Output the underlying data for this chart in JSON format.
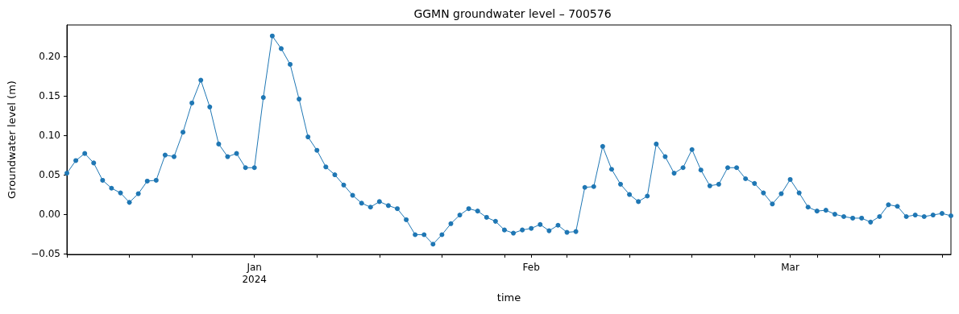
{
  "chart_data": {
    "type": "line",
    "title": "GGMN groundwater level – 700576",
    "xlabel": "time",
    "ylabel": "Groundwater level (m)",
    "x": [
      "2023-12-11",
      "2023-12-12",
      "2023-12-13",
      "2023-12-14",
      "2023-12-15",
      "2023-12-16",
      "2023-12-17",
      "2023-12-18",
      "2023-12-19",
      "2023-12-20",
      "2023-12-21",
      "2023-12-22",
      "2023-12-23",
      "2023-12-24",
      "2023-12-25",
      "2023-12-26",
      "2023-12-27",
      "2023-12-28",
      "2023-12-29",
      "2023-12-30",
      "2023-12-31",
      "2024-01-01",
      "2024-01-02",
      "2024-01-03",
      "2024-01-04",
      "2024-01-05",
      "2024-01-06",
      "2024-01-07",
      "2024-01-08",
      "2024-01-09",
      "2024-01-10",
      "2024-01-11",
      "2024-01-12",
      "2024-01-13",
      "2024-01-14",
      "2024-01-15",
      "2024-01-16",
      "2024-01-17",
      "2024-01-18",
      "2024-01-19",
      "2024-01-20",
      "2024-01-21",
      "2024-01-22",
      "2024-01-23",
      "2024-01-24",
      "2024-01-25",
      "2024-01-26",
      "2024-01-27",
      "2024-01-28",
      "2024-01-29",
      "2024-01-30",
      "2024-01-31",
      "2024-02-01",
      "2024-02-02",
      "2024-02-03",
      "2024-02-04",
      "2024-02-05",
      "2024-02-06",
      "2024-02-07",
      "2024-02-08",
      "2024-02-09",
      "2024-02-10",
      "2024-02-11",
      "2024-02-12",
      "2024-02-13",
      "2024-02-14",
      "2024-02-15",
      "2024-02-16",
      "2024-02-17",
      "2024-02-18",
      "2024-02-19",
      "2024-02-20",
      "2024-02-21",
      "2024-02-22",
      "2024-02-23",
      "2024-02-24",
      "2024-02-25",
      "2024-02-26",
      "2024-02-27",
      "2024-02-28",
      "2024-02-29",
      "2024-03-01",
      "2024-03-02",
      "2024-03-03",
      "2024-03-04",
      "2024-03-05",
      "2024-03-06",
      "2024-03-07",
      "2024-03-08",
      "2024-03-09",
      "2024-03-10",
      "2024-03-11",
      "2024-03-12",
      "2024-03-13",
      "2024-03-14",
      "2024-03-15",
      "2024-03-16",
      "2024-03-17",
      "2024-03-18",
      "2024-03-19"
    ],
    "series": [
      {
        "color": "#1f77b4",
        "values": [
          0.052,
          0.068,
          0.077,
          0.065,
          0.043,
          0.033,
          0.027,
          0.015,
          0.026,
          0.042,
          0.043,
          0.075,
          0.073,
          0.104,
          0.141,
          0.17,
          0.136,
          0.089,
          0.073,
          0.077,
          0.059,
          0.059,
          0.148,
          0.226,
          0.21,
          0.19,
          0.146,
          0.098,
          0.081,
          0.06,
          0.05,
          0.037,
          0.024,
          0.014,
          0.009,
          0.016,
          0.011,
          0.007,
          -0.007,
          -0.026,
          -0.026,
          -0.038,
          -0.026,
          -0.012,
          -0.001,
          0.007,
          0.004,
          -0.004,
          -0.009,
          -0.02,
          -0.024,
          -0.02,
          -0.018,
          -0.013,
          -0.021,
          -0.014,
          -0.023,
          -0.022,
          0.034,
          0.035,
          0.086,
          0.057,
          0.038,
          0.025,
          0.016,
          0.023,
          0.089,
          0.073,
          0.052,
          0.059,
          0.082,
          0.056,
          0.036,
          0.038,
          0.059,
          0.059,
          0.045,
          0.039,
          0.027,
          0.013,
          0.026,
          0.044,
          0.027,
          0.009,
          0.004,
          0.005,
          0.0,
          -0.003,
          -0.005,
          -0.005,
          -0.01,
          -0.003,
          0.012,
          0.01,
          -0.003,
          -0.001,
          -0.003,
          -0.001,
          0.001,
          -0.002
        ]
      }
    ],
    "xlim": [
      "2023-12-11",
      "2024-03-19"
    ],
    "xticks": [
      {
        "value": "2023-12-11",
        "label": null
      },
      {
        "value": "2023-12-18",
        "label": null
      },
      {
        "value": "2023-12-25",
        "label": null
      },
      {
        "value": "2024-01-01",
        "label": "Jan\n2024"
      },
      {
        "value": "2024-01-08",
        "label": null
      },
      {
        "value": "2024-01-15",
        "label": null
      },
      {
        "value": "2024-01-22",
        "label": null
      },
      {
        "value": "2024-01-29",
        "label": null
      },
      {
        "value": "2024-02-01",
        "label": "Feb"
      },
      {
        "value": "2024-02-05",
        "label": null
      },
      {
        "value": "2024-02-12",
        "label": null
      },
      {
        "value": "2024-02-19",
        "label": null
      },
      {
        "value": "2024-02-26",
        "label": null
      },
      {
        "value": "2024-03-01",
        "label": "Mar"
      },
      {
        "value": "2024-03-04",
        "label": null
      },
      {
        "value": "2024-03-11",
        "label": null
      },
      {
        "value": "2024-03-18",
        "label": null
      }
    ],
    "ylim": [
      -0.051,
      0.24
    ],
    "yticks": [
      {
        "value": -0.05,
        "label": "−0.05"
      },
      {
        "value": 0,
        "label": "0.00"
      },
      {
        "value": 0.05,
        "label": "0.05"
      },
      {
        "value": 0.1,
        "label": "0.10"
      },
      {
        "value": 0.15,
        "label": "0.15"
      },
      {
        "value": 0.2,
        "label": "0.20"
      }
    ],
    "marker": "circle",
    "grid": false
  }
}
